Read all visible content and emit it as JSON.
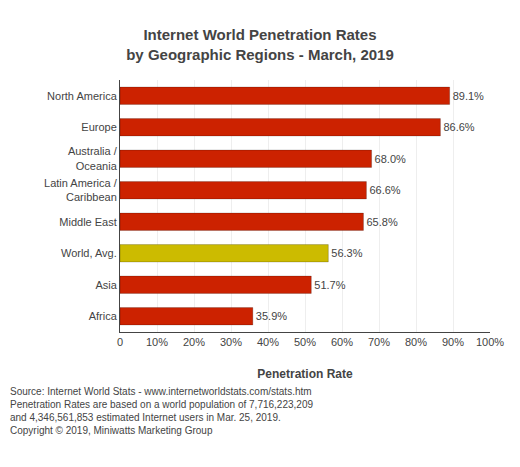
{
  "chart_data": {
    "type": "bar",
    "orientation": "horizontal",
    "title": "Internet World Penetration Rates\nby Geographic Regions - March, 2019",
    "categories": [
      "North America",
      "Europe",
      "Australia /\nOceania",
      "Latin America /\nCaribbean",
      "Middle East",
      "World, Avg.",
      "Asia",
      "Africa"
    ],
    "values": [
      89.1,
      86.6,
      68.0,
      66.6,
      65.8,
      56.3,
      51.7,
      35.9
    ],
    "value_labels": [
      "89.1%",
      "86.6%",
      "68.0%",
      "66.6%",
      "65.8%",
      "56.3%",
      "51.7%",
      "35.9%"
    ],
    "data_labels": true,
    "colors": [
      "#cc2200",
      "#cc2200",
      "#cc2200",
      "#cc2200",
      "#cc2200",
      "#ccbb00",
      "#cc2200",
      "#cc2200"
    ],
    "xlabel": "Penetration Rate",
    "xlim": [
      0,
      100
    ],
    "xticks": [
      0,
      {
        "value": 10,
        "label": "10%"
      },
      {
        "value": 20,
        "label": "20%"
      },
      {
        "value": 30,
        "label": "30%"
      },
      {
        "value": 40,
        "label": "40%"
      },
      {
        "value": 50,
        "label": "50%"
      },
      {
        "value": 60,
        "label": "60%"
      },
      {
        "value": 70,
        "label": "70%"
      },
      {
        "value": 80,
        "label": "80%"
      },
      {
        "value": 90,
        "label": "90%"
      },
      {
        "value": 100,
        "label": "100%"
      }
    ],
    "grid": true,
    "annotations": [
      "Source: Internet World Stats - www.internetworldstats.com/stats.htm\nPenetration Rates are based on a world population of 7,716,223,209\nand 4,346,561,853 estimated Internet users in Mar. 25, 2019.\nCopyright © 2019, Miniwatts Marketing Group"
    ]
  }
}
